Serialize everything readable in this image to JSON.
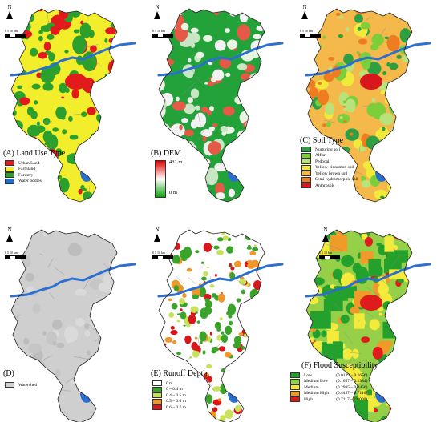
{
  "north_label": "N",
  "scale_labels": {
    "zero": "0",
    "five": "5",
    "ten": "10 km"
  },
  "panels": {
    "a": {
      "title": "(A) Land Use Type",
      "legend": [
        {
          "label": "Urban Land",
          "color": "#e31a1c"
        },
        {
          "label": "Farmland",
          "color": "#f2ee2b"
        },
        {
          "label": "Forestry",
          "color": "#2ca02c"
        },
        {
          "label": "Water bodies",
          "color": "#1f6fd1"
        }
      ]
    },
    "b": {
      "title": "(B) DEM",
      "max_label": "431 m",
      "min_label": "0 m"
    },
    "c": {
      "title": "(C) Soil Type",
      "legend": [
        {
          "label": "Nurturing soil",
          "color": "#2ea043"
        },
        {
          "label": "Alfisr",
          "color": "#7ccf3a"
        },
        {
          "label": "Pedocal",
          "color": "#b9e27a"
        },
        {
          "label": "Yellow-cinnamon soil",
          "color": "#f2ea3a"
        },
        {
          "label": "Yellow brown soil",
          "color": "#f5b84a"
        },
        {
          "label": "Semi-hydromorphic soil",
          "color": "#ee7d22"
        },
        {
          "label": "Anthrosols",
          "color": "#d8161c"
        }
      ]
    },
    "d": {
      "title": "(D)",
      "legend": [
        {
          "label": "Watershed",
          "color": "#d0d0d0"
        }
      ]
    },
    "e": {
      "title": "(E) Runoff Depth",
      "legend": [
        {
          "label": "0 m",
          "color": "#ffffff"
        },
        {
          "label": "0 – 0.4 m",
          "color": "#3aa32a"
        },
        {
          "label": "0.4 – 0.5 m",
          "color": "#c9e05a"
        },
        {
          "label": "0.5 – 0.6 m",
          "color": "#f0962a"
        },
        {
          "label": "0.6 – 0.7 m",
          "color": "#d8161c"
        }
      ]
    },
    "f": {
      "title": "(F) Flood Susceptibility",
      "legend": [
        {
          "label": "Low",
          "range": "(0.0139 – 0.1656)",
          "color": "#24a02c"
        },
        {
          "label": "Medium Low",
          "range": "(0.1657 – 0.2984)",
          "color": "#96d048"
        },
        {
          "label": "Medium",
          "range": "(0.2985 – 0.4456)",
          "color": "#f3ea3b"
        },
        {
          "label": "Medium High",
          "range": "(0.4457 – 0.7116)",
          "color": "#f09a2a"
        },
        {
          "label": "High",
          "range": "(0.7117 – 1.0000)",
          "color": "#e01b1c"
        }
      ]
    }
  },
  "colors": {
    "river": "#2b6fd1",
    "boundary": "#222222",
    "subdivision": "#8a8a8a"
  }
}
